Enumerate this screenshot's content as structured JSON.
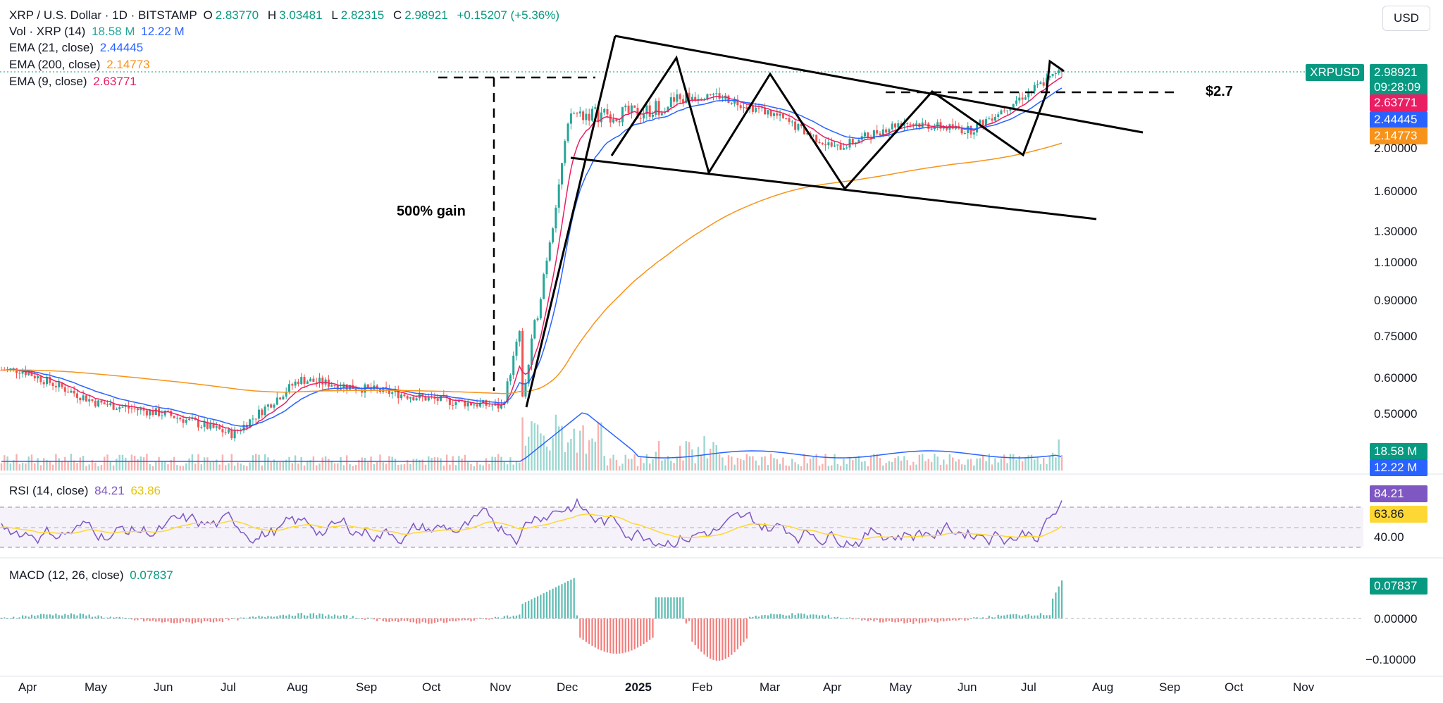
{
  "header": {
    "symbol_line": "XRP / U.S. Dollar · 1D · BITSTAMP",
    "o_label": "O",
    "o_val": "2.83770",
    "h_label": "H",
    "h_val": "3.03481",
    "l_label": "L",
    "l_val": "2.82315",
    "c_label": "C",
    "c_val": "2.98921",
    "change": "+0.15207 (+5.36%)",
    "currency_button": "USD"
  },
  "legend": {
    "vol": {
      "label": "Vol · XRP (14)",
      "v1": "18.58 M",
      "v2": "12.22 M"
    },
    "ema21": {
      "label": "EMA (21, close)",
      "value": "2.44445",
      "color": "#2962ff"
    },
    "ema200": {
      "label": "EMA (200, close)",
      "value": "2.14773",
      "color": "#f7931a"
    },
    "ema9": {
      "label": "EMA (9, close)",
      "value": "2.63771",
      "color": "#e91e63"
    },
    "rsi": {
      "label": "RSI (14, close)",
      "v1": "84.21",
      "v2": "63.86"
    },
    "macd": {
      "label": "MACD (12, 26, close)",
      "value": "0.07837"
    }
  },
  "price_tags": {
    "symbol": "XRPUSD",
    "last": "2.98921",
    "countdown": "09:28:09",
    "ema9": "2.63771",
    "ema21": "2.44445",
    "ema200": "2.14773",
    "vol1": "18.58 M",
    "vol2": "12.22 M",
    "rsi1": "84.21",
    "rsi2": "63.86",
    "macd": "0.07837"
  },
  "annotations": {
    "gain": "500% gain",
    "level": "$2.7"
  },
  "colors": {
    "up": "#26a69a",
    "down": "#ef5350",
    "ema9": "#e91e63",
    "ema21": "#2962ff",
    "ema200": "#f7931a",
    "rsi": "#7e57c2",
    "rsi_ma": "#fdd835",
    "tag_green": "#089981"
  },
  "chart_data": {
    "type": "candlestick",
    "scale": "log",
    "price_axis_ticks": [
      "2.00000",
      "1.60000",
      "1.30000",
      "1.10000",
      "0.90000",
      "0.75000",
      "0.60000",
      "0.50000"
    ],
    "rsi_axis_ticks": [
      "40.00"
    ],
    "macd_axis_ticks": [
      "0.00000",
      "−0.10000"
    ],
    "x_ticks": [
      "Apr",
      "May",
      "Jun",
      "Jul",
      "Aug",
      "Sep",
      "Oct",
      "Nov",
      "Dec",
      "2025",
      "Feb",
      "Mar",
      "Apr",
      "May",
      "Jun",
      "Jul",
      "Aug",
      "Sep",
      "Oct",
      "Nov"
    ],
    "price_path_approx": [
      {
        "x": "Apr",
        "y": 0.63
      },
      {
        "x": "May",
        "y": 0.53
      },
      {
        "x": "Jun",
        "y": 0.5
      },
      {
        "x": "Jul",
        "y": 0.45
      },
      {
        "x": "Aug",
        "y": 0.6
      },
      {
        "x": "Sep",
        "y": 0.57
      },
      {
        "x": "Oct",
        "y": 0.54
      },
      {
        "x": "Nov",
        "y": 0.52
      },
      {
        "x": "Dec",
        "y": 2.4
      },
      {
        "x": "2025",
        "y": 2.4
      },
      {
        "x": "Feb",
        "y": 2.7
      },
      {
        "x": "Mar",
        "y": 2.4
      },
      {
        "x": "Apr",
        "y": 2.0
      },
      {
        "x": "May",
        "y": 2.3
      },
      {
        "x": "Jun",
        "y": 2.2
      },
      {
        "x": "Jul",
        "y": 2.98921
      }
    ]
  }
}
